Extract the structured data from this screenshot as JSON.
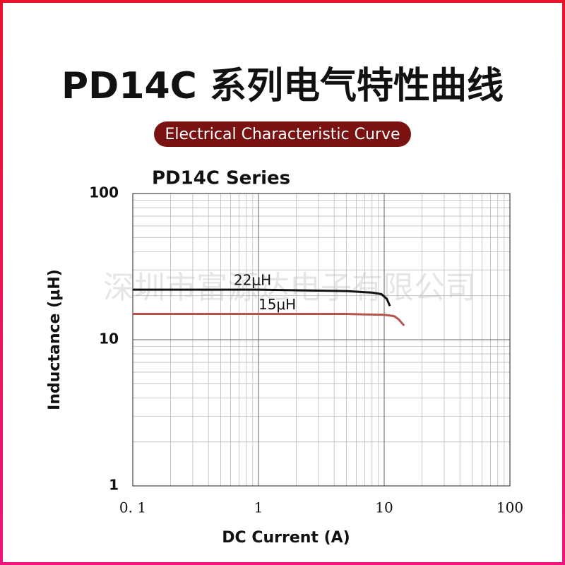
{
  "header": {
    "title": "PD14C 系列电气特性曲线",
    "subtitle": "Electrical Characteristic Curve",
    "watermark": "深圳市富源达电子有限公司"
  },
  "chart_data": {
    "type": "line",
    "title": "PD14C Series",
    "x_label": "DC Current (A)",
    "y_label": "Inductance (μH)",
    "xscale": "log",
    "yscale": "log",
    "grid": true,
    "xlim": [
      0.1,
      100
    ],
    "ylim": [
      1,
      100
    ],
    "xticks": [
      {
        "value": 0.1,
        "label": "0. 1"
      },
      1,
      10,
      100
    ],
    "yticks": [
      1,
      10,
      100
    ],
    "series": [
      {
        "name": "22μH",
        "color": "#111111",
        "x": [
          0.1,
          1,
          5,
          8,
          9.5,
          10.5,
          11.1
        ],
        "values": [
          22,
          22,
          21.5,
          21,
          20.5,
          19,
          17
        ]
      },
      {
        "name": "15μH",
        "color": "#b5534e",
        "x": [
          0.1,
          1,
          5,
          10,
          12,
          13,
          14.4
        ],
        "values": [
          15,
          15,
          15,
          14.8,
          14.5,
          13.8,
          12.5
        ]
      }
    ]
  }
}
